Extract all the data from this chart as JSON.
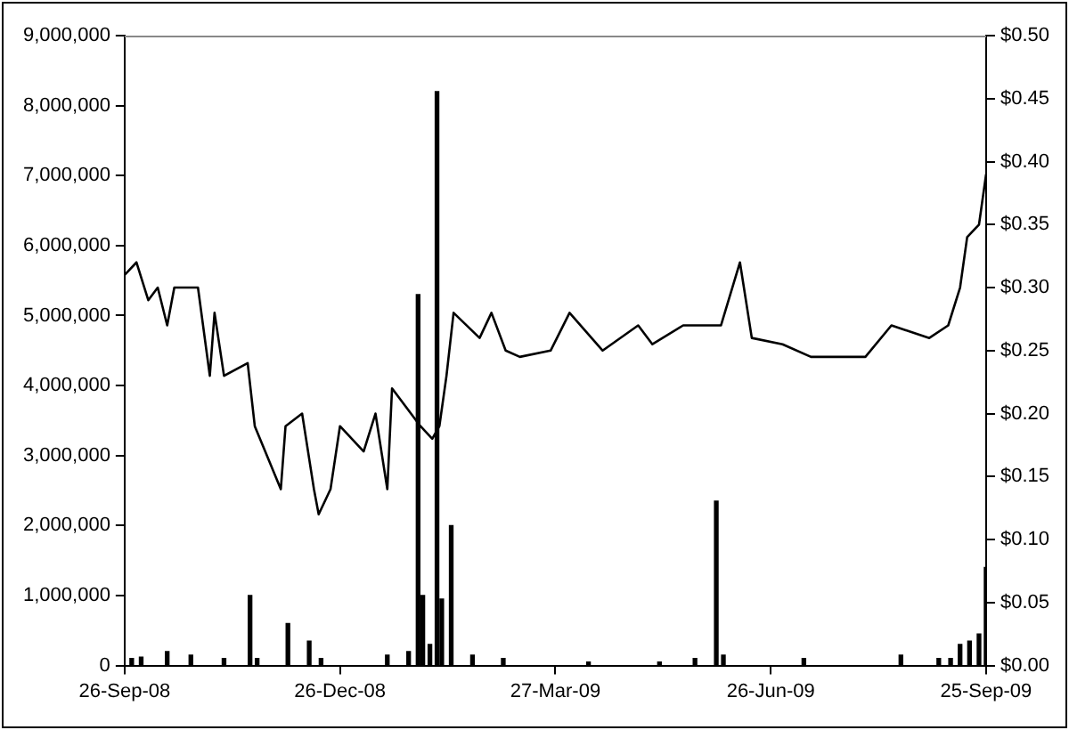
{
  "chart_data": {
    "type": "bar",
    "xlim": [
      "2008-09-26",
      "2009-09-25"
    ],
    "xticks": [
      {
        "value": "2008-09-26",
        "label": "26-Sep-08"
      },
      {
        "value": "2008-12-26",
        "label": "26-Dec-08"
      },
      {
        "value": "2009-03-27",
        "label": "27-Mar-09"
      },
      {
        "value": "2009-06-26",
        "label": "26-Jun-09"
      },
      {
        "value": "2009-09-25",
        "label": "25-Sep-09"
      }
    ],
    "ylim": [
      0,
      9000000
    ],
    "yticks": [
      {
        "value": 0,
        "label": "0"
      },
      {
        "value": 1000000,
        "label": "1,000,000"
      },
      {
        "value": 2000000,
        "label": "2,000,000"
      },
      {
        "value": 3000000,
        "label": "3,000,000"
      },
      {
        "value": 4000000,
        "label": "4,000,000"
      },
      {
        "value": 5000000,
        "label": "5,000,000"
      },
      {
        "value": 6000000,
        "label": "6,000,000"
      },
      {
        "value": 7000000,
        "label": "7,000,000"
      },
      {
        "value": 8000000,
        "label": "8,000,000"
      },
      {
        "value": 9000000,
        "label": "9,000,000"
      }
    ],
    "y2lim": [
      0,
      0.5
    ],
    "y2ticks": [
      {
        "value": 0,
        "label": "$0.00"
      },
      {
        "value": 0.05,
        "label": "$0.05"
      },
      {
        "value": 0.1,
        "label": "$0.10"
      },
      {
        "value": 0.15,
        "label": "$0.15"
      },
      {
        "value": 0.2,
        "label": "$0.20"
      },
      {
        "value": 0.25,
        "label": "$0.25"
      },
      {
        "value": 0.3,
        "label": "$0.30"
      },
      {
        "value": 0.35,
        "label": "$0.35"
      },
      {
        "value": 0.4,
        "label": "$0.40"
      },
      {
        "value": 0.45,
        "label": "$0.45"
      },
      {
        "value": 0.5,
        "label": "$0.50"
      }
    ],
    "grid": false,
    "legend": false,
    "marker": "none",
    "line_style": "solid",
    "series": [
      {
        "color": "#000000",
        "x": [
          "2008-09-29",
          "2008-10-03",
          "2008-10-14",
          "2008-10-24",
          "2008-11-07",
          "2008-11-18",
          "2008-11-21",
          "2008-12-04",
          "2008-12-13",
          "2008-12-18",
          "2009-01-15",
          "2009-01-24",
          "2009-01-28",
          "2009-01-30",
          "2009-02-02",
          "2009-02-05",
          "2009-02-07",
          "2009-02-11",
          "2009-02-20",
          "2009-03-05",
          "2009-04-10",
          "2009-05-10",
          "2009-05-25",
          "2009-06-03",
          "2009-06-06",
          "2009-07-10",
          "2009-08-20",
          "2009-09-05",
          "2009-09-10",
          "2009-09-14",
          "2009-09-18",
          "2009-09-22",
          "2009-09-25"
        ],
        "values": [
          100000,
          120000,
          200000,
          150000,
          100000,
          1000000,
          100000,
          600000,
          350000,
          100000,
          150000,
          200000,
          5300000,
          1000000,
          300000,
          8200000,
          950000,
          2000000,
          150000,
          100000,
          50000,
          50000,
          100000,
          2350000,
          150000,
          100000,
          150000,
          100000,
          100000,
          300000,
          350000,
          450000,
          1400000
        ]
      },
      {
        "type": "line",
        "axis": "y2",
        "color": "#000000",
        "x": [
          "2008-09-26",
          "2008-10-01",
          "2008-10-06",
          "2008-10-10",
          "2008-10-14",
          "2008-10-17",
          "2008-10-27",
          "2008-11-01",
          "2008-11-03",
          "2008-11-07",
          "2008-11-17",
          "2008-11-20",
          "2008-12-01",
          "2008-12-03",
          "2008-12-10",
          "2008-12-15",
          "2008-12-17",
          "2008-12-22",
          "2008-12-26",
          "2009-01-05",
          "2009-01-10",
          "2009-01-15",
          "2009-01-17",
          "2009-01-29",
          "2009-02-03",
          "2009-02-06",
          "2009-02-09",
          "2009-02-12",
          "2009-02-23",
          "2009-02-28",
          "2009-03-06",
          "2009-03-12",
          "2009-03-25",
          "2009-04-02",
          "2009-04-16",
          "2009-05-01",
          "2009-05-07",
          "2009-05-20",
          "2009-06-05",
          "2009-06-13",
          "2009-06-18",
          "2009-07-01",
          "2009-07-13",
          "2009-08-05",
          "2009-08-16",
          "2009-09-01",
          "2009-09-09",
          "2009-09-14",
          "2009-09-17",
          "2009-09-22",
          "2009-09-25"
        ],
        "values": [
          0.31,
          0.32,
          0.29,
          0.3,
          0.27,
          0.3,
          0.3,
          0.23,
          0.28,
          0.23,
          0.24,
          0.19,
          0.14,
          0.19,
          0.2,
          0.14,
          0.12,
          0.14,
          0.19,
          0.17,
          0.2,
          0.14,
          0.22,
          0.19,
          0.18,
          0.19,
          0.23,
          0.28,
          0.26,
          0.28,
          0.25,
          0.245,
          0.25,
          0.28,
          0.25,
          0.27,
          0.255,
          0.27,
          0.27,
          0.32,
          0.26,
          0.255,
          0.245,
          0.245,
          0.27,
          0.26,
          0.27,
          0.3,
          0.34,
          0.35,
          0.39
        ]
      }
    ]
  }
}
